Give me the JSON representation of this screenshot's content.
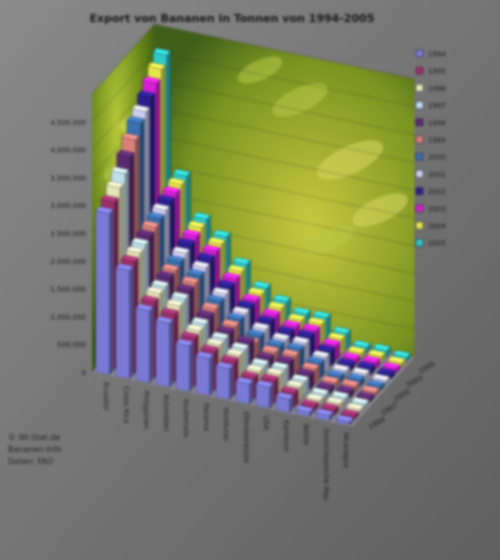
{
  "chart_data": {
    "type": "bar",
    "style": "3d-clustered-columns",
    "title": "Export von Bananen in Tonnen von 1994-2005",
    "ylim": [
      0,
      5000000
    ],
    "yticks": [
      "0",
      "500.000",
      "1.000.000",
      "1.500.000",
      "2.000.000",
      "2.500.000",
      "3.000.000",
      "3.500.000",
      "4.000.000",
      "4.500.000"
    ],
    "categories": [
      "Ecuador",
      "Costa Rica",
      "Philippinen",
      "Kolumbien",
      "Guatemala",
      "Panama",
      "Honduras",
      "Elfenbeinküste",
      "USA",
      "Kamerun",
      "Belize",
      "Dominikanische Rep.",
      "Nicaragua"
    ],
    "depth_labels": [
      "1994",
      "1997",
      "2000",
      "2003",
      "2005"
    ],
    "series": [
      {
        "name": "1994",
        "color": "#7a7ad6",
        "values": [
          2900000,
          1950000,
          1300000,
          1150000,
          820000,
          670000,
          560000,
          360000,
          380000,
          240000,
          80000,
          95000,
          60000
        ]
      },
      {
        "name": "1995",
        "color": "#9c2f6c",
        "values": [
          3000000,
          2000000,
          1350000,
          1200000,
          850000,
          690000,
          580000,
          370000,
          390000,
          245000,
          82000,
          97000,
          62000
        ]
      },
      {
        "name": "1996",
        "color": "#e6e6b8",
        "values": [
          3150000,
          2050000,
          1400000,
          1250000,
          880000,
          700000,
          590000,
          380000,
          395000,
          250000,
          84000,
          99000,
          64000
        ]
      },
      {
        "name": "1997",
        "color": "#bfe0ee",
        "values": [
          3300000,
          2100000,
          1420000,
          1280000,
          900000,
          710000,
          600000,
          390000,
          400000,
          252000,
          86000,
          100000,
          65000
        ]
      },
      {
        "name": "1998",
        "color": "#5a2a70",
        "values": [
          3500000,
          2150000,
          1480000,
          1320000,
          930000,
          720000,
          610000,
          400000,
          410000,
          255000,
          88000,
          102000,
          66000
        ]
      },
      {
        "name": "1999",
        "color": "#d9807a",
        "values": [
          3700000,
          2200000,
          1500000,
          1350000,
          960000,
          730000,
          500000,
          410000,
          420000,
          258000,
          90000,
          104000,
          67000
        ]
      },
      {
        "name": "2000",
        "color": "#3a6fb0",
        "values": [
          3900000,
          2250000,
          1550000,
          1380000,
          990000,
          740000,
          520000,
          420000,
          430000,
          260000,
          92000,
          106000,
          68000
        ]
      },
      {
        "name": "2001",
        "color": "#cfcff4",
        "values": [
          4000000,
          2300000,
          1600000,
          1420000,
          1020000,
          750000,
          540000,
          430000,
          440000,
          262000,
          94000,
          108000,
          69000
        ]
      },
      {
        "name": "2002",
        "color": "#2a1f8f",
        "values": [
          4150000,
          2350000,
          1650000,
          1460000,
          1050000,
          760000,
          560000,
          440000,
          450000,
          265000,
          96000,
          110000,
          70000
        ]
      },
      {
        "name": "2003",
        "color": "#d81fd8",
        "values": [
          4300000,
          2400000,
          1700000,
          1500000,
          1080000,
          770000,
          580000,
          450000,
          460000,
          268000,
          98000,
          112000,
          71000
        ]
      },
      {
        "name": "2004",
        "color": "#e6e64a",
        "values": [
          4450000,
          2450000,
          1750000,
          1530000,
          1110000,
          780000,
          600000,
          460000,
          470000,
          270000,
          100000,
          114000,
          72000
        ]
      },
      {
        "name": "2005",
        "color": "#2fc8c8",
        "values": [
          4600000,
          2500000,
          1800000,
          1560000,
          1140000,
          790000,
          620000,
          470000,
          480000,
          272000,
          102000,
          116000,
          73000
        ]
      }
    ],
    "legend_position": "right",
    "grid": true
  },
  "source_note": [
    "© Wi-Stat.de",
    "Bananen-Info",
    "Daten: FAO"
  ]
}
